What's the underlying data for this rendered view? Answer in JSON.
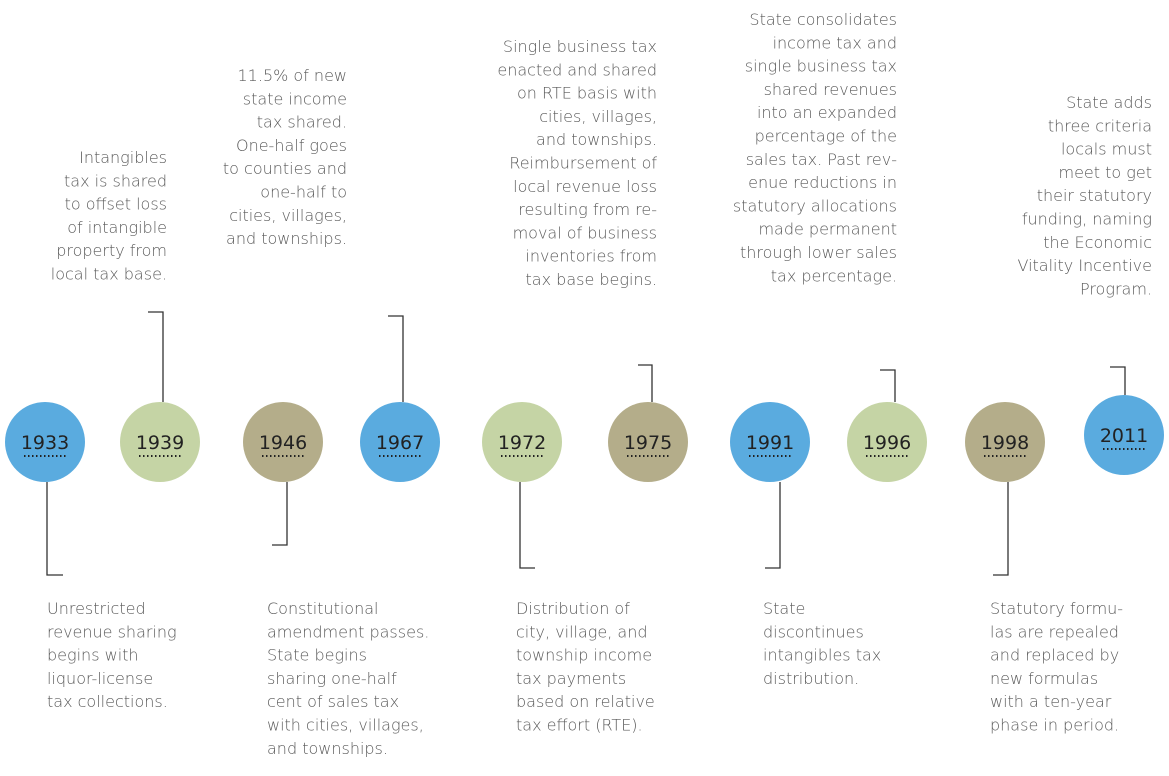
{
  "events": [
    {
      "year": "1933",
      "lines": [
        "Unrestricted",
        "revenue sharing",
        "begins with",
        "liquor-license",
        "tax collections."
      ]
    },
    {
      "year": "1939",
      "lines": [
        "Intangibles",
        "tax is shared",
        "to offset loss",
        "of intangible",
        "property from",
        "local tax base."
      ]
    },
    {
      "year": "1946",
      "lines": [
        "Constitutional",
        "amendment passes.",
        "State begins",
        "sharing one-half",
        "cent of sales tax",
        "with cities, villages,",
        "and townships."
      ]
    },
    {
      "year": "1967",
      "lines": [
        "11.5% of new",
        "state income",
        "tax shared.",
        "One-half goes",
        "to counties and",
        "one-half to",
        "cities, villages,",
        "and townships."
      ]
    },
    {
      "year": "1972",
      "lines": [
        "Distribution of",
        "city, village, and",
        "township income",
        "tax payments",
        "based on relative",
        "tax effort (RTE)."
      ]
    },
    {
      "year": "1975",
      "lines": [
        "Single business tax",
        "enacted and shared",
        "on RTE basis with",
        "cities, villages,",
        "and townships.",
        "Reimbursement of",
        "local revenue loss",
        "resulting from re-",
        "moval of business",
        "inventories from",
        "tax base begins."
      ]
    },
    {
      "year": "1991",
      "lines": [
        "State",
        "discontinues",
        "intangibles tax",
        "distribution."
      ]
    },
    {
      "year": "1996",
      "lines": [
        "State consolidates",
        "income tax and",
        "single business tax",
        "shared revenues",
        "into an expanded",
        "percentage of the",
        "sales tax. Past rev-",
        "enue reductions in",
        "statutory allocations",
        "made permanent",
        "through lower sales",
        "tax percentage."
      ]
    },
    {
      "year": "1998",
      "lines": [
        "Statutory formu-",
        "las are repealed",
        "and replaced by",
        "new formulas",
        "with a ten-year",
        "phase in period."
      ]
    },
    {
      "year": "2011",
      "lines": [
        "State adds",
        "three criteria",
        "locals must",
        "meet to get",
        "their statutory",
        "funding, naming",
        "the Economic",
        "Vitality Incentive",
        "Program."
      ]
    }
  ]
}
